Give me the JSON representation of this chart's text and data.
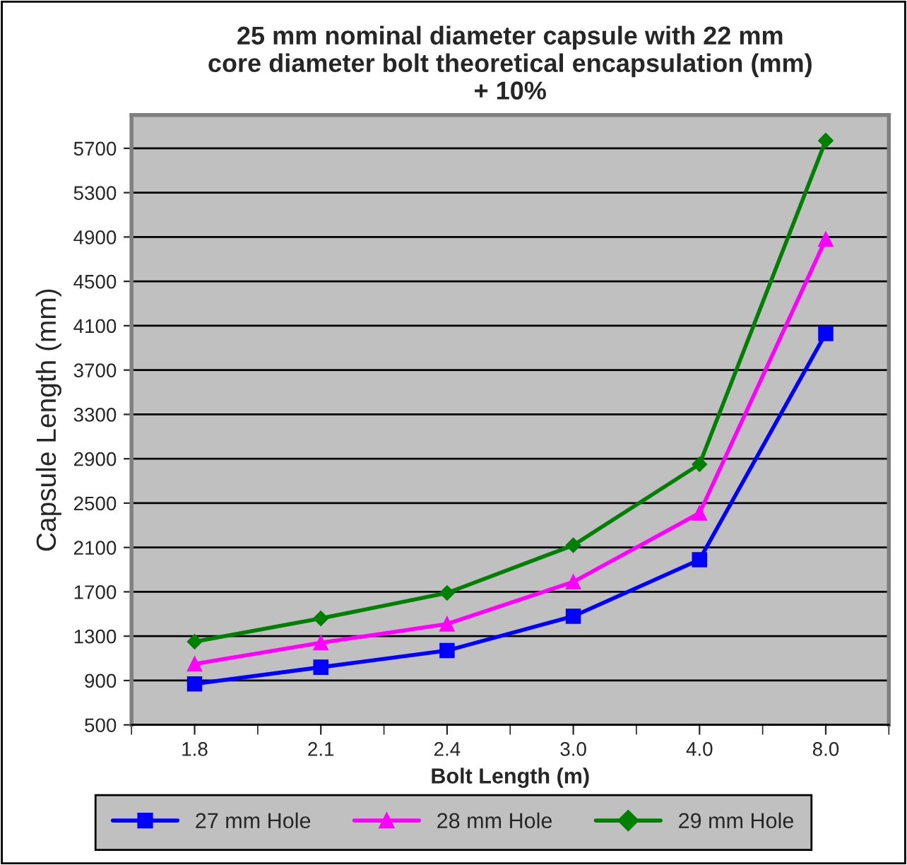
{
  "chart_data": {
    "type": "line",
    "title": "25 mm nominal diameter capsule with 22 mm\ncore diameter bolt theoretical encapsulation (mm)\n+ 10%",
    "xlabel": "Bolt Length (m)",
    "ylabel": "Capsule Length (mm)",
    "categories": [
      "1.8",
      "2.1",
      "2.4",
      "3.0",
      "4.0",
      "8.0"
    ],
    "series": [
      {
        "name": "27 mm Hole",
        "color": "#0000ff",
        "marker": "square",
        "values": [
          870,
          1020,
          1170,
          1480,
          1990,
          4030
        ]
      },
      {
        "name": "28 mm Hole",
        "color": "#ff00ff",
        "marker": "triangle",
        "values": [
          1050,
          1240,
          1410,
          1790,
          2410,
          4880
        ]
      },
      {
        "name": "29 mm Hole",
        "color": "#008000",
        "marker": "diamond",
        "values": [
          1250,
          1460,
          1690,
          2120,
          2850,
          5770
        ]
      }
    ],
    "ylim": [
      500,
      6000
    ],
    "yticks": [
      500,
      900,
      1300,
      1700,
      2100,
      2500,
      2900,
      3300,
      3700,
      4100,
      4500,
      4900,
      5300,
      5700
    ],
    "grid": "y",
    "legend": "bottom",
    "line_style": "solid"
  }
}
